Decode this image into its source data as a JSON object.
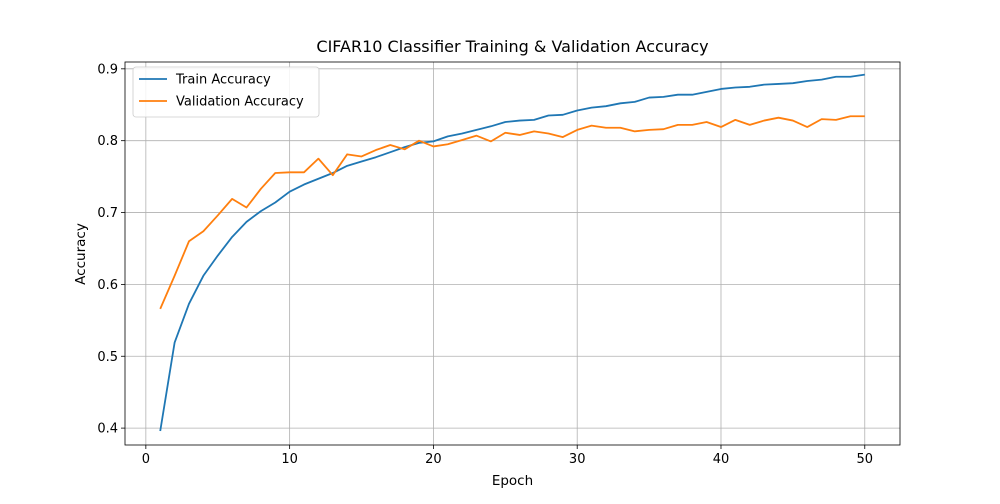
{
  "chart_data": {
    "type": "line",
    "title": "CIFAR10 Classifier Training & Validation Accuracy",
    "xlabel": "Epoch",
    "ylabel": "Accuracy",
    "xlim": [
      -1.45,
      52.45
    ],
    "ylim": [
      0.3765,
      0.9095
    ],
    "xticks": [
      0,
      10,
      20,
      30,
      40,
      50
    ],
    "yticks": [
      0.4,
      0.5,
      0.6,
      0.7,
      0.8,
      0.9
    ],
    "xtick_labels": [
      "0",
      "10",
      "20",
      "30",
      "40",
      "50"
    ],
    "ytick_labels": [
      "0.4",
      "0.5",
      "0.6",
      "0.7",
      "0.8",
      "0.9"
    ],
    "grid": true,
    "legend_position": "top-left",
    "x": [
      1,
      2,
      3,
      4,
      5,
      6,
      7,
      8,
      9,
      10,
      11,
      12,
      13,
      14,
      15,
      16,
      17,
      18,
      19,
      20,
      21,
      22,
      23,
      24,
      25,
      26,
      27,
      28,
      29,
      30,
      31,
      32,
      33,
      34,
      35,
      36,
      37,
      38,
      39,
      40,
      41,
      42,
      43,
      44,
      45,
      46,
      47,
      48,
      49,
      50
    ],
    "series": [
      {
        "name": "Train Accuracy",
        "color": "#1f77b4",
        "values": [
          0.396,
          0.519,
          0.573,
          0.612,
          0.64,
          0.666,
          0.687,
          0.702,
          0.714,
          0.729,
          0.739,
          0.747,
          0.755,
          0.765,
          0.771,
          0.777,
          0.784,
          0.791,
          0.797,
          0.799,
          0.806,
          0.81,
          0.815,
          0.82,
          0.826,
          0.828,
          0.829,
          0.835,
          0.836,
          0.842,
          0.846,
          0.848,
          0.852,
          0.854,
          0.86,
          0.861,
          0.864,
          0.864,
          0.868,
          0.872,
          0.874,
          0.875,
          0.878,
          0.879,
          0.88,
          0.883,
          0.885,
          0.889,
          0.889,
          0.892
        ]
      },
      {
        "name": "Validation Accuracy",
        "color": "#ff7f0e",
        "values": [
          0.566,
          0.612,
          0.66,
          0.674,
          0.696,
          0.719,
          0.707,
          0.733,
          0.755,
          0.756,
          0.756,
          0.775,
          0.752,
          0.781,
          0.778,
          0.787,
          0.794,
          0.788,
          0.8,
          0.792,
          0.795,
          0.801,
          0.807,
          0.799,
          0.811,
          0.808,
          0.813,
          0.81,
          0.805,
          0.815,
          0.821,
          0.818,
          0.818,
          0.813,
          0.815,
          0.816,
          0.822,
          0.822,
          0.826,
          0.819,
          0.829,
          0.822,
          0.828,
          0.832,
          0.828,
          0.819,
          0.83,
          0.829,
          0.834,
          0.834
        ]
      }
    ]
  }
}
